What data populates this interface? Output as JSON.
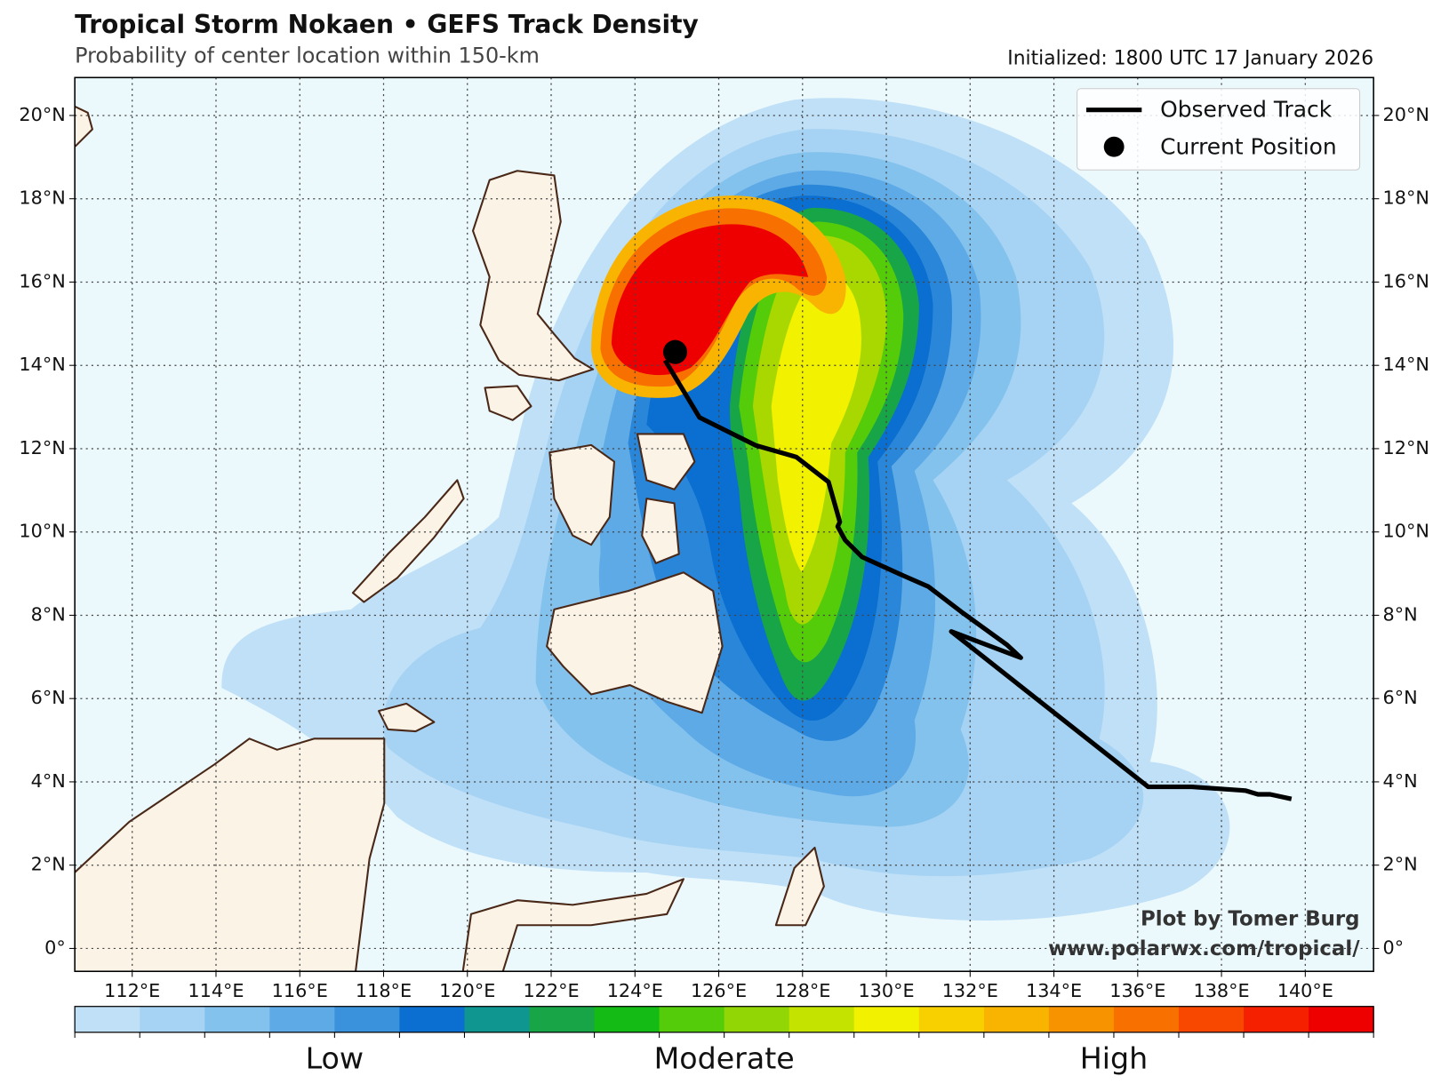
{
  "header": {
    "title": "Tropical Storm Nokaen • GEFS Track Density",
    "subtitle": "Probability of center location within 150-km",
    "initialized": "Initialized: 1800 UTC 17 January 2026"
  },
  "map": {
    "xlim": [
      110.63,
      141.63
    ],
    "ylim": [
      -0.55,
      20.91
    ],
    "xticks": [
      {
        "value": 112,
        "label": "112°E"
      },
      {
        "value": 114,
        "label": "114°E"
      },
      {
        "value": 116,
        "label": "116°E"
      },
      {
        "value": 118,
        "label": "118°E"
      },
      {
        "value": 120,
        "label": "120°E"
      },
      {
        "value": 122,
        "label": "122°E"
      },
      {
        "value": 124,
        "label": "124°E"
      },
      {
        "value": 126,
        "label": "126°E"
      },
      {
        "value": 128,
        "label": "128°E"
      },
      {
        "value": 130,
        "label": "130°E"
      },
      {
        "value": 132,
        "label": "132°E"
      },
      {
        "value": 134,
        "label": "134°E"
      },
      {
        "value": 136,
        "label": "136°E"
      },
      {
        "value": 138,
        "label": "138°E"
      },
      {
        "value": 140,
        "label": "140°E"
      }
    ],
    "yticks": [
      {
        "value": 0,
        "label": "0°"
      },
      {
        "value": 2,
        "label": "2°N"
      },
      {
        "value": 4,
        "label": "4°N"
      },
      {
        "value": 6,
        "label": "6°N"
      },
      {
        "value": 8,
        "label": "8°N"
      },
      {
        "value": 10,
        "label": "10°N"
      },
      {
        "value": 12,
        "label": "12°N"
      },
      {
        "value": 14,
        "label": "14°N"
      },
      {
        "value": 16,
        "label": "16°N"
      },
      {
        "value": 18,
        "label": "18°N"
      },
      {
        "value": 20,
        "label": "20°N"
      }
    ],
    "grid": true,
    "track": {
      "lon": [
        139.67,
        139.16,
        138.87,
        138.57,
        137.29,
        136.25,
        131.55,
        133.21,
        132.88,
        131.78,
        131.0,
        130.34,
        129.42,
        129.02,
        128.84,
        128.89,
        128.62,
        127.85,
        126.88,
        125.54,
        124.72
      ],
      "lat": [
        3.59,
        3.7,
        3.7,
        3.79,
        3.88,
        3.88,
        7.61,
        6.98,
        7.29,
        8.09,
        8.69,
        8.98,
        9.4,
        9.8,
        10.13,
        10.24,
        11.2,
        11.8,
        12.08,
        12.75,
        14.12
      ],
      "color": "#000000"
    },
    "current_position": {
      "lon": 124.96,
      "lat": 14.32,
      "color": "#000000"
    }
  },
  "legend": {
    "items": [
      "Observed Track",
      "Current Position"
    ],
    "corner": "upper right"
  },
  "credit": [
    "Plot by Tomer Burg",
    "www.polarwx.com/tropical/"
  ],
  "colorbar": {
    "colors": [
      "#bfe0f7",
      "#a6d3f3",
      "#84c2ee",
      "#5eaae6",
      "#3a92dc",
      "#0a6fd0",
      "#0f9690",
      "#18a548",
      "#14bb14",
      "#55cc0a",
      "#92d606",
      "#c4e400",
      "#f2f200",
      "#f8d000",
      "#f8b400",
      "#f89300",
      "#f87000",
      "#f84800",
      "#f42000",
      "#ee0000"
    ],
    "labels": [
      "Low",
      "Moderate",
      "High"
    ]
  }
}
